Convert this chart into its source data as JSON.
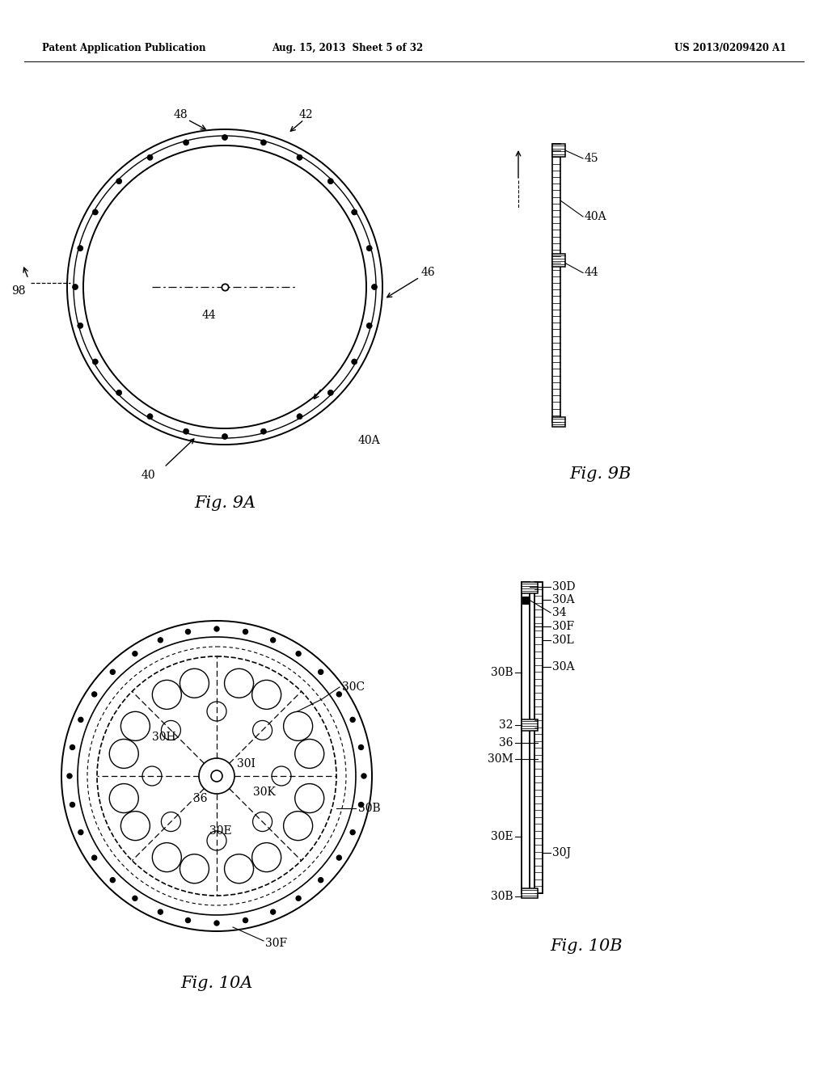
{
  "header_left": "Patent Application Publication",
  "header_mid": "Aug. 15, 2013  Sheet 5 of 32",
  "header_right": "US 2013/0209420 A1",
  "fig9a_label": "Fig. 9A",
  "fig9b_label": "Fig. 9B",
  "fig10a_label": "Fig. 10A",
  "fig10b_label": "Fig. 10B",
  "bg_color": "#ffffff",
  "line_color": "#000000"
}
